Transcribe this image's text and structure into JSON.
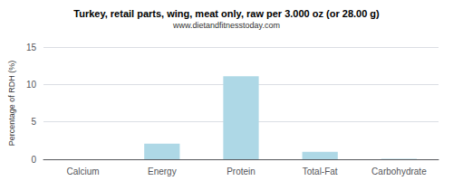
{
  "chart_data": {
    "type": "bar",
    "title": "Turkey, retail parts, wing, meat only, raw per 3.000 oz (or 28.00 g)",
    "subtitle": "www.dietandfitnesstoday.com",
    "categories": [
      "Calcium",
      "Energy",
      "Protein",
      "Total-Fat",
      "Carbohydrate"
    ],
    "values": [
      0.0,
      2.1,
      11.1,
      1.0,
      0.05
    ],
    "color": "#aed8e6",
    "ylabel": "Percentage of RDH (%)",
    "ylim": [
      0,
      15
    ],
    "yticks": [
      0,
      5,
      10,
      15
    ],
    "grid": true
  }
}
